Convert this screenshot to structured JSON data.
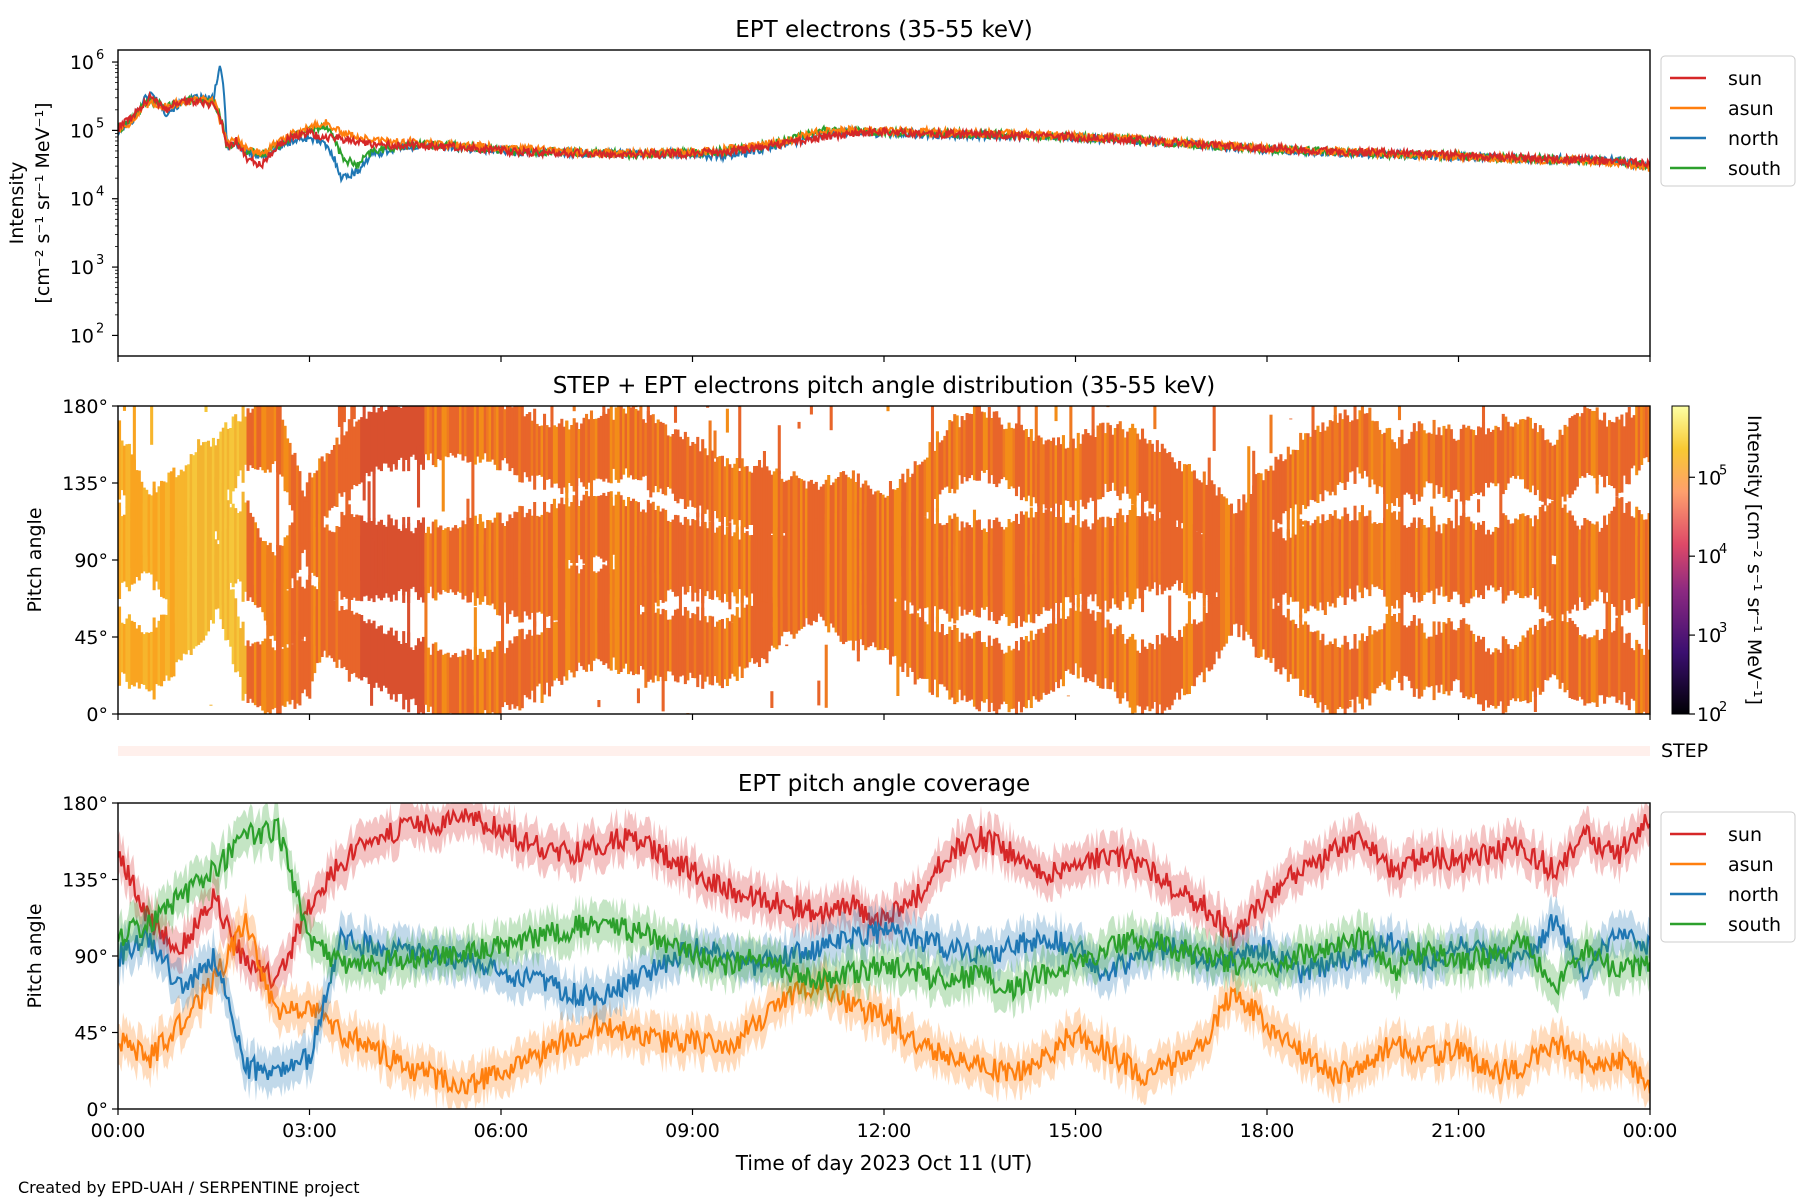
{
  "footer": "Created by EPD-UAH / SERPENTINE project",
  "colors": {
    "sun": "#d62728",
    "asun": "#ff7f0e",
    "north": "#1f77b4",
    "south": "#2ca02c",
    "step_bar": "#fff0ec"
  },
  "time_axis": {
    "xlabel": "Time of day 2023 Oct 11 (UT)",
    "ticks": [
      "00:00",
      "03:00",
      "06:00",
      "09:00",
      "12:00",
      "15:00",
      "18:00",
      "21:00",
      "00:00"
    ],
    "range_hours": [
      0,
      24
    ]
  },
  "chart_data": [
    {
      "type": "line",
      "title": "EPT electrons (35-55 keV)",
      "ylabel_line1": "Intensity",
      "ylabel_line2": "[cm⁻² s⁻¹ sr⁻¹ MeV⁻¹]",
      "yscale": "log",
      "ylim": [
        50,
        1500000
      ],
      "yticks": [
        "10",
        "10",
        "10",
        "10",
        "10"
      ],
      "ytick_exponents": [
        "2",
        "3",
        "4",
        "5",
        "6"
      ],
      "x_hours": [
        0,
        0.25,
        0.5,
        0.75,
        1.0,
        1.25,
        1.5,
        1.6,
        1.7,
        1.85,
        2.0,
        2.25,
        2.5,
        2.75,
        3.0,
        3.25,
        3.5,
        3.75,
        4.0,
        4.5,
        5.0,
        5.5,
        6.0,
        6.5,
        7.0,
        7.5,
        8.0,
        8.5,
        9.0,
        9.5,
        10.0,
        10.5,
        11.0,
        11.5,
        12.0,
        12.5,
        13.0,
        14.0,
        15.0,
        16.0,
        17.0,
        18.0,
        19.0,
        20.0,
        21.0,
        22.0,
        23.0,
        23.5,
        24.0
      ],
      "series": [
        {
          "name": "sun",
          "values": [
            110000,
            160000,
            300000,
            200000,
            280000,
            260000,
            240000,
            150000,
            60000,
            70000,
            40000,
            30000,
            60000,
            80000,
            90000,
            80000,
            75000,
            70000,
            60000,
            62000,
            58000,
            55000,
            50000,
            48000,
            47000,
            45000,
            44000,
            45000,
            46000,
            48000,
            55000,
            65000,
            80000,
            90000,
            95000,
            92000,
            88000,
            85000,
            80000,
            72000,
            62000,
            55000,
            50000,
            46000,
            43000,
            40000,
            37000,
            35000,
            32000
          ]
        },
        {
          "name": "asun",
          "values": [
            100000,
            140000,
            250000,
            220000,
            260000,
            280000,
            270000,
            140000,
            65000,
            75000,
            55000,
            45000,
            65000,
            90000,
            110000,
            130000,
            90000,
            80000,
            70000,
            68000,
            64000,
            60000,
            55000,
            52000,
            50000,
            48000,
            46000,
            47000,
            48000,
            52000,
            60000,
            70000,
            95000,
            100000,
            100000,
            97000,
            92000,
            90000,
            82000,
            73000,
            63000,
            55000,
            50000,
            45000,
            42000,
            38000,
            36000,
            34000,
            28000
          ]
        },
        {
          "name": "north",
          "values": [
            90000,
            150000,
            350000,
            180000,
            250000,
            300000,
            280000,
            800000,
            60000,
            65000,
            50000,
            40000,
            55000,
            70000,
            80000,
            60000,
            20000,
            25000,
            45000,
            58000,
            60000,
            55000,
            50000,
            49000,
            48000,
            46000,
            45000,
            46000,
            45000,
            42000,
            50000,
            65000,
            85000,
            95000,
            90000,
            88000,
            86000,
            84000,
            78000,
            70000,
            60000,
            52000,
            48000,
            44000,
            41000,
            39000,
            37000,
            36000,
            30000
          ]
        },
        {
          "name": "south",
          "values": [
            100000,
            150000,
            280000,
            210000,
            270000,
            270000,
            260000,
            160000,
            55000,
            70000,
            50000,
            45000,
            60000,
            85000,
            100000,
            120000,
            40000,
            30000,
            50000,
            60000,
            62000,
            57000,
            52000,
            50000,
            49000,
            47000,
            45000,
            46000,
            47000,
            50000,
            58000,
            72000,
            100000,
            95000,
            95000,
            93000,
            90000,
            86000,
            80000,
            72000,
            61000,
            54000,
            49000,
            45000,
            42000,
            39000,
            36000,
            35000,
            30000
          ]
        }
      ],
      "legend": [
        "sun",
        "asun",
        "north",
        "south"
      ],
      "legend_position": "outside-right"
    },
    {
      "type": "heatmap",
      "title": "STEP + EPT electrons pitch angle distribution (35-55 keV)",
      "ylabel": "Pitch angle",
      "ylim": [
        0,
        180
      ],
      "yticks": [
        "0°",
        "45°",
        "90°",
        "135°",
        "180°"
      ],
      "colorbar": {
        "label": "Intensity [cm⁻² s⁻¹ sr⁻¹ MeV⁻¹]",
        "scale": "log",
        "range": [
          100,
          800000
        ],
        "tick_bases": [
          "10",
          "10",
          "10",
          "10"
        ],
        "tick_exponents": [
          "2",
          "3",
          "4",
          "5"
        ],
        "colormap": "inferno"
      },
      "step_label": "STEP"
    },
    {
      "type": "line",
      "title": "EPT pitch angle coverage",
      "ylabel": "Pitch angle",
      "ylim": [
        0,
        180
      ],
      "yticks": [
        "0°",
        "45°",
        "90°",
        "135°",
        "180°"
      ],
      "x_hours": [
        0,
        0.5,
        1.0,
        1.5,
        2.0,
        2.5,
        3.0,
        3.5,
        4.0,
        4.5,
        5.0,
        5.5,
        6.0,
        6.5,
        7.0,
        7.5,
        8.0,
        8.5,
        9.0,
        9.5,
        10.0,
        10.5,
        11.0,
        11.5,
        12.0,
        12.5,
        13.0,
        13.5,
        14.0,
        14.5,
        15.0,
        15.5,
        16.0,
        16.5,
        17.0,
        17.5,
        18.0,
        18.5,
        19.0,
        19.5,
        20.0,
        20.5,
        21.0,
        21.5,
        22.0,
        22.5,
        23.0,
        23.5,
        24.0
      ],
      "series": [
        {
          "name": "sun",
          "values": [
            150,
            110,
            95,
            125,
            85,
            75,
            120,
            145,
            160,
            165,
            168,
            170,
            165,
            155,
            150,
            155,
            160,
            150,
            140,
            130,
            125,
            120,
            115,
            120,
            110,
            125,
            150,
            160,
            150,
            140,
            140,
            150,
            145,
            130,
            120,
            100,
            125,
            140,
            150,
            160,
            140,
            150,
            145,
            150,
            155,
            140,
            160,
            150,
            170
          ]
        },
        {
          "name": "asun",
          "values": [
            40,
            30,
            50,
            75,
            110,
            55,
            60,
            45,
            35,
            25,
            18,
            15,
            20,
            30,
            40,
            50,
            45,
            40,
            40,
            35,
            50,
            65,
            75,
            60,
            55,
            40,
            30,
            25,
            20,
            30,
            45,
            35,
            20,
            25,
            40,
            70,
            50,
            35,
            20,
            25,
            40,
            30,
            35,
            20,
            25,
            40,
            25,
            30,
            15
          ]
        },
        {
          "name": "north",
          "values": [
            90,
            100,
            70,
            90,
            25,
            20,
            30,
            100,
            95,
            92,
            90,
            88,
            80,
            75,
            70,
            65,
            75,
            85,
            95,
            90,
            85,
            90,
            95,
            100,
            105,
            100,
            95,
            90,
            95,
            100,
            95,
            80,
            90,
            95,
            85,
            90,
            95,
            80,
            85,
            90,
            100,
            85,
            95,
            90,
            85,
            110,
            80,
            105,
            95
          ]
        },
        {
          "name": "south",
          "values": [
            100,
            110,
            125,
            140,
            160,
            165,
            100,
            85,
            85,
            88,
            90,
            92,
            95,
            100,
            105,
            110,
            105,
            100,
            90,
            85,
            90,
            80,
            75,
            80,
            85,
            80,
            75,
            80,
            70,
            80,
            85,
            95,
            100,
            95,
            90,
            85,
            80,
            90,
            95,
            100,
            80,
            95,
            85,
            90,
            100,
            70,
            95,
            80,
            85
          ]
        }
      ],
      "band_halfwidth_deg": 12,
      "legend": [
        "sun",
        "asun",
        "north",
        "south"
      ],
      "legend_position": "outside-right"
    }
  ]
}
